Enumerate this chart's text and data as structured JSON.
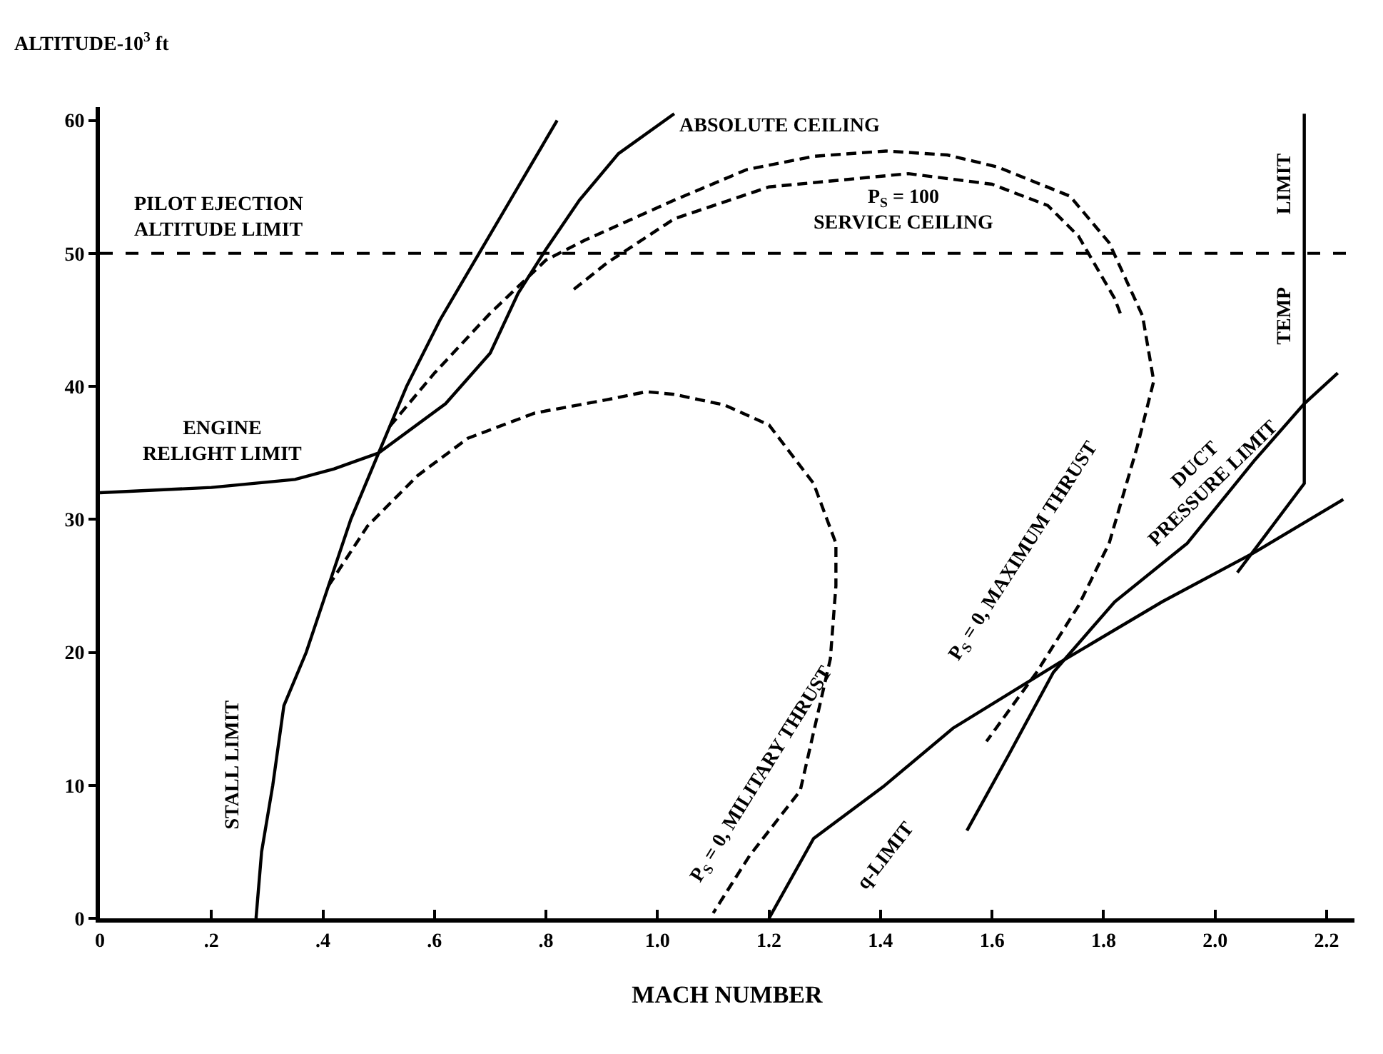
{
  "chart_data": {
    "type": "line",
    "xlabel": "MACH NUMBER",
    "ylabel": "ALTITUDE-10$^{3}$ ft",
    "xlim": [
      0,
      2.25
    ],
    "ylim": [
      0,
      61
    ],
    "xticks": [
      {
        "value": 0,
        "label": "0"
      },
      {
        "value": 0.2,
        "label": ".2"
      },
      {
        "value": 0.4,
        "label": ".4"
      },
      {
        "value": 0.6,
        "label": ".6"
      },
      {
        "value": 0.8,
        "label": ".8"
      },
      {
        "value": 1.0,
        "label": "1.0"
      },
      {
        "value": 1.2,
        "label": "1.2"
      },
      {
        "value": 1.4,
        "label": "1.4"
      },
      {
        "value": 1.6,
        "label": "1.6"
      },
      {
        "value": 1.8,
        "label": "1.8"
      },
      {
        "value": 2.0,
        "label": "2.0"
      },
      {
        "value": 2.2,
        "label": "2.2"
      }
    ],
    "yticks": [
      0,
      10,
      20,
      30,
      40,
      50,
      60
    ],
    "marker": "none",
    "series": [
      {
        "color": "#000000",
        "line_style": "solid",
        "x": [
          0.28,
          0.29,
          0.31,
          0.33,
          0.37,
          0.41,
          0.45,
          0.5,
          0.55,
          0.61,
          0.68,
          0.75,
          0.82
        ],
        "values": [
          0,
          5,
          10,
          16,
          20,
          25,
          30,
          35,
          40,
          45,
          50,
          55,
          60
        ]
      },
      {
        "color": "#000000",
        "line_style": "solid",
        "x": [
          0,
          0.2,
          0.35,
          0.42,
          0.5,
          0.62,
          0.7,
          0.75,
          0.8,
          0.86,
          0.93,
          1.03
        ],
        "values": [
          32,
          32.4,
          33,
          33.8,
          35,
          38.7,
          42.5,
          47,
          50.3,
          54,
          57.5,
          60.5
        ]
      },
      {
        "color": "#000000",
        "line_style": "dashed",
        "x": [
          0.52,
          0.6,
          0.7,
          0.8,
          0.87,
          1.03,
          1.16,
          1.28,
          1.41,
          1.52,
          1.61,
          1.74,
          1.81,
          1.87,
          1.89,
          1.86,
          1.81,
          1.755,
          1.68,
          1.59
        ],
        "values": [
          37,
          41,
          45.5,
          49.5,
          51,
          54,
          56.3,
          57.3,
          57.7,
          57.4,
          56.5,
          54.3,
          50.8,
          45.3,
          40.4,
          35.4,
          28.2,
          23.5,
          18.5,
          13.3
        ]
      },
      {
        "color": "#000000",
        "line_style": "dashed",
        "x": [
          0.85,
          0.91,
          1.03,
          1.2,
          1.45,
          1.6,
          1.7,
          1.755,
          1.82,
          1.83
        ],
        "values": [
          47.3,
          49.3,
          52.6,
          55,
          56,
          55.2,
          53.6,
          51.3,
          46.6,
          45.5
        ]
      },
      {
        "color": "#000000",
        "line_style": "dashed",
        "x": [
          0.41,
          0.48,
          0.57,
          0.66,
          0.78,
          0.91,
          0.98,
          1.03,
          1.12,
          1.2,
          1.28,
          1.32,
          1.32,
          1.31,
          1.256,
          1.165,
          1.1
        ],
        "values": [
          25,
          29.5,
          33.3,
          36.1,
          38,
          39,
          39.6,
          39.4,
          38.6,
          37.1,
          32.7,
          28.2,
          25,
          19.5,
          9.6,
          4.7,
          0.4
        ]
      },
      {
        "color": "#000000",
        "line_style": "solid",
        "x": [
          1.2,
          1.28,
          1.405,
          1.53,
          1.72,
          1.905,
          2.07,
          2.23
        ],
        "values": [
          0,
          6,
          9.9,
          14.3,
          19.2,
          23.8,
          27.5,
          31.5
        ]
      },
      {
        "color": "#000000",
        "line_style": "solid",
        "x": [
          1.555,
          1.63,
          1.71,
          1.82,
          1.95,
          2.07,
          2.16,
          2.22
        ],
        "values": [
          6.6,
          12.3,
          18.5,
          23.8,
          28.2,
          34.4,
          38.7,
          41
        ]
      },
      {
        "color": "#000000",
        "line_style": "solid",
        "x": [
          2.16,
          2.16,
          2.04
        ],
        "values": [
          60.5,
          32.7,
          26
        ]
      }
    ],
    "ref_lines": [
      {
        "axis": "y",
        "value": 50,
        "label": "PILOT EJECTION\nALTITUDE LIMIT",
        "color": "#000000",
        "line_style": "dashed"
      }
    ],
    "annotations": [
      "ENGINE\nRELIGHT LIMIT",
      "ABSOLUTE CEILING",
      "P$_{S}$ = 100\nSERVICE CEILING",
      "STALL LIMIT",
      "P$_{S}$ = 0, MILITARY THRUST",
      "q-LIMIT",
      "P$_{S}$ = 0, MAXIMUM THRUST",
      "DUCT\nPRESSURE LIMIT",
      "TEMP",
      "LIMIT"
    ]
  }
}
